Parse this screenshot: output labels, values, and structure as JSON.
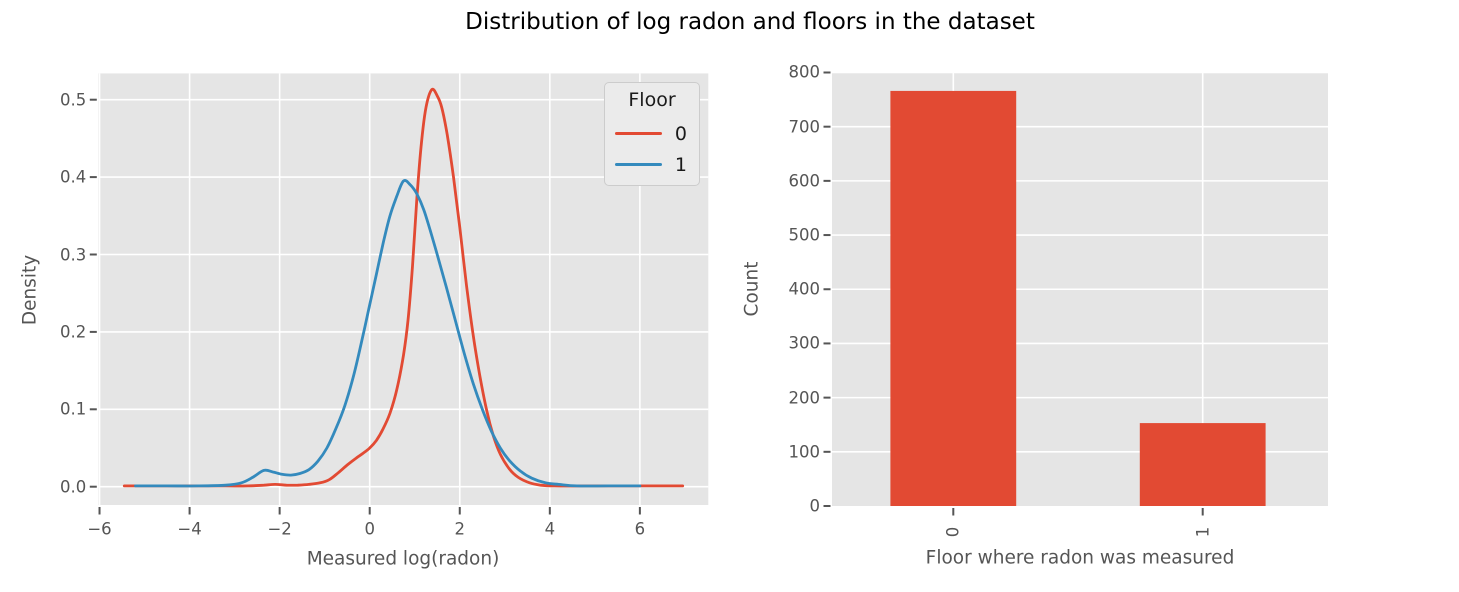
{
  "figure": {
    "title": "Distribution of log radon and floors in the dataset",
    "background": "#ffffff",
    "panel_background": "#e5e5e5",
    "grid_color": "#ffffff",
    "tick_color": "#555555",
    "text_color": "#555555",
    "title_color": "#000000"
  },
  "chart_data": [
    {
      "type": "line",
      "subtype": "kde",
      "title": "",
      "xlabel": "Measured log(radon)",
      "ylabel": "Density",
      "xlim": [
        -6.03,
        7.52
      ],
      "ylim": [
        -0.024,
        0.534
      ],
      "grid": true,
      "xticks": [
        -6,
        -4,
        -2,
        0,
        2,
        4,
        6
      ],
      "xticklabels": [
        "−6",
        "−4",
        "−2",
        "0",
        "2",
        "4",
        "6"
      ],
      "yticks": [
        0.0,
        0.1,
        0.2,
        0.3,
        0.4,
        0.5
      ],
      "yticklabels": [
        "0.0",
        "0.1",
        "0.2",
        "0.3",
        "0.4",
        "0.5"
      ],
      "legend": {
        "title": "Floor",
        "position": "upper right"
      },
      "series": [
        {
          "name": "0",
          "color": "#E24A33",
          "points": [
            [
              -5.45,
              0.001
            ],
            [
              -4.8,
              0.001
            ],
            [
              -4.0,
              0.001
            ],
            [
              -3.2,
              0.001
            ],
            [
              -2.7,
              0.001
            ],
            [
              -2.35,
              0.002
            ],
            [
              -2.1,
              0.003
            ],
            [
              -1.85,
              0.002
            ],
            [
              -1.6,
              0.002
            ],
            [
              -1.35,
              0.003
            ],
            [
              -1.1,
              0.005
            ],
            [
              -0.9,
              0.009
            ],
            [
              -0.7,
              0.018
            ],
            [
              -0.5,
              0.028
            ],
            [
              -0.3,
              0.037
            ],
            [
              -0.15,
              0.043
            ],
            [
              0.0,
              0.05
            ],
            [
              0.15,
              0.06
            ],
            [
              0.3,
              0.075
            ],
            [
              0.45,
              0.095
            ],
            [
              0.6,
              0.125
            ],
            [
              0.75,
              0.17
            ],
            [
              0.85,
              0.215
            ],
            [
              0.95,
              0.285
            ],
            [
              1.05,
              0.375
            ],
            [
              1.15,
              0.445
            ],
            [
              1.25,
              0.49
            ],
            [
              1.38,
              0.513
            ],
            [
              1.5,
              0.505
            ],
            [
              1.6,
              0.49
            ],
            [
              1.72,
              0.455
            ],
            [
              1.86,
              0.4
            ],
            [
              2.0,
              0.335
            ],
            [
              2.15,
              0.26
            ],
            [
              2.3,
              0.195
            ],
            [
              2.45,
              0.142
            ],
            [
              2.6,
              0.098
            ],
            [
              2.75,
              0.065
            ],
            [
              2.9,
              0.042
            ],
            [
              3.1,
              0.023
            ],
            [
              3.3,
              0.012
            ],
            [
              3.55,
              0.005
            ],
            [
              3.8,
              0.002
            ],
            [
              4.1,
              0.001
            ],
            [
              4.8,
              0.001
            ],
            [
              5.8,
              0.001
            ],
            [
              6.95,
              0.001
            ]
          ]
        },
        {
          "name": "1",
          "color": "#348ABD",
          "points": [
            [
              -5.2,
              0.001
            ],
            [
              -4.5,
              0.001
            ],
            [
              -3.8,
              0.001
            ],
            [
              -3.2,
              0.002
            ],
            [
              -2.85,
              0.005
            ],
            [
              -2.6,
              0.012
            ],
            [
              -2.35,
              0.021
            ],
            [
              -2.15,
              0.019
            ],
            [
              -1.95,
              0.016
            ],
            [
              -1.75,
              0.015
            ],
            [
              -1.55,
              0.017
            ],
            [
              -1.35,
              0.022
            ],
            [
              -1.15,
              0.033
            ],
            [
              -0.95,
              0.05
            ],
            [
              -0.75,
              0.075
            ],
            [
              -0.55,
              0.105
            ],
            [
              -0.35,
              0.145
            ],
            [
              -0.15,
              0.195
            ],
            [
              0.0,
              0.235
            ],
            [
              0.15,
              0.275
            ],
            [
              0.3,
              0.315
            ],
            [
              0.45,
              0.35
            ],
            [
              0.6,
              0.375
            ],
            [
              0.75,
              0.395
            ],
            [
              0.9,
              0.39
            ],
            [
              1.05,
              0.378
            ],
            [
              1.2,
              0.358
            ],
            [
              1.35,
              0.33
            ],
            [
              1.5,
              0.3
            ],
            [
              1.7,
              0.258
            ],
            [
              1.9,
              0.215
            ],
            [
              2.1,
              0.172
            ],
            [
              2.3,
              0.133
            ],
            [
              2.5,
              0.1
            ],
            [
              2.7,
              0.072
            ],
            [
              2.9,
              0.05
            ],
            [
              3.1,
              0.034
            ],
            [
              3.35,
              0.02
            ],
            [
              3.6,
              0.011
            ],
            [
              3.9,
              0.005
            ],
            [
              4.2,
              0.003
            ],
            [
              4.6,
              0.001
            ],
            [
              5.3,
              0.001
            ],
            [
              6.0,
              0.001
            ]
          ]
        }
      ]
    },
    {
      "type": "bar",
      "xlabel": "Floor where radon was measured",
      "ylabel": "Count",
      "categories": [
        "0",
        "1"
      ],
      "values": [
        766,
        153
      ],
      "bar_color": "#E24A33",
      "ylim": [
        0,
        800
      ],
      "yticks": [
        0,
        100,
        200,
        300,
        400,
        500,
        600,
        700,
        800
      ],
      "yticklabels": [
        "0",
        "100",
        "200",
        "300",
        "400",
        "500",
        "600",
        "700",
        "800"
      ],
      "xtick_rotation": 90,
      "grid": true
    }
  ]
}
